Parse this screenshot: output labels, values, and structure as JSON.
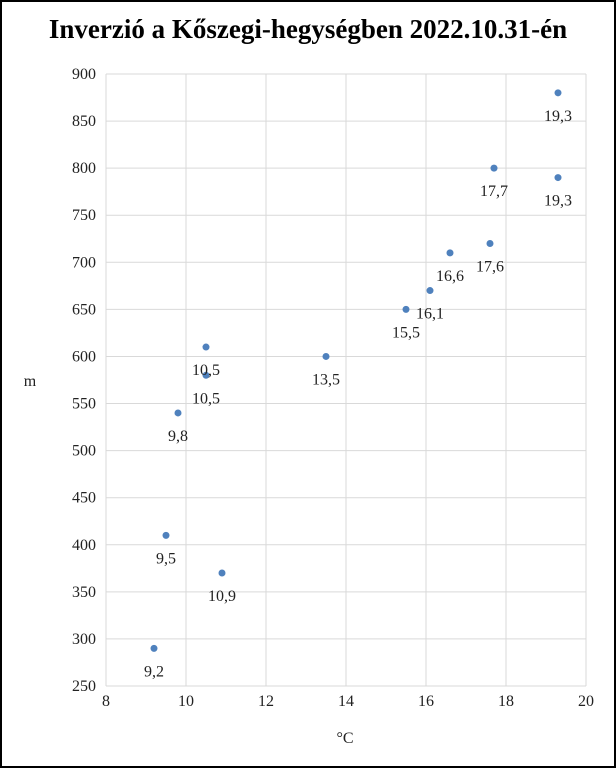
{
  "chart_data": {
    "type": "scatter",
    "title": "Inverzió a Kőszegi-hegységben 2022.10.31-én",
    "xlabel": "°C",
    "ylabel": "m",
    "xlim": [
      8,
      20
    ],
    "ylim": [
      250,
      900
    ],
    "xticks": [
      8,
      10,
      12,
      14,
      16,
      18,
      20
    ],
    "yticks": [
      250,
      300,
      350,
      400,
      450,
      500,
      550,
      600,
      650,
      700,
      750,
      800,
      850,
      900
    ],
    "grid": true,
    "marker_color": "#4f81bd",
    "points": [
      {
        "x": 9.2,
        "y": 290,
        "label": "9,2",
        "pos": "below"
      },
      {
        "x": 9.5,
        "y": 410,
        "label": "9,5",
        "pos": "below"
      },
      {
        "x": 10.9,
        "y": 370,
        "label": "10,9",
        "pos": "below"
      },
      {
        "x": 9.8,
        "y": 540,
        "label": "9,8",
        "pos": "below"
      },
      {
        "x": 10.5,
        "y": 580,
        "label": "10,5",
        "pos": "below"
      },
      {
        "x": 10.5,
        "y": 610,
        "label": "10,5",
        "pos": "below"
      },
      {
        "x": 13.5,
        "y": 600,
        "label": "13,5",
        "pos": "below"
      },
      {
        "x": 15.5,
        "y": 650,
        "label": "15,5",
        "pos": "below"
      },
      {
        "x": 16.1,
        "y": 670,
        "label": "16,1",
        "pos": "below"
      },
      {
        "x": 16.6,
        "y": 710,
        "label": "16,6",
        "pos": "below"
      },
      {
        "x": 17.6,
        "y": 720,
        "label": "17,6",
        "pos": "below"
      },
      {
        "x": 17.7,
        "y": 800,
        "label": "17,7",
        "pos": "below"
      },
      {
        "x": 19.3,
        "y": 790,
        "label": "19,3",
        "pos": "below"
      },
      {
        "x": 19.3,
        "y": 880,
        "label": "19,3",
        "pos": "below"
      }
    ]
  }
}
